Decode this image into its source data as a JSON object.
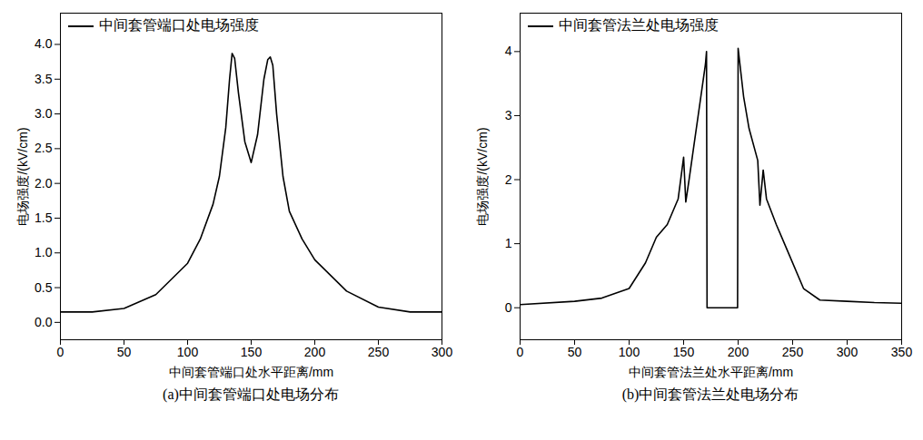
{
  "chart_data": [
    {
      "type": "line",
      "title": "(a)中间套管端口处电场分布",
      "x_label": "中间套管端口处水平距离/mm",
      "y_label": "电场强度/(kV/cm)",
      "xlim": [
        0,
        300
      ],
      "xticks": [
        0,
        50,
        100,
        150,
        200,
        250,
        300
      ],
      "ylim": [
        -0.25,
        4.45
      ],
      "yticks": [
        {
          "value": 0,
          "label": "0.0"
        },
        0.5,
        {
          "value": 1,
          "label": "1.0"
        },
        1.5,
        {
          "value": 2,
          "label": "2.0"
        },
        2.5,
        {
          "value": 3,
          "label": "3.0"
        },
        3.5,
        {
          "value": 4,
          "label": "4.0"
        }
      ],
      "grid": false,
      "legend": "top-left",
      "series": [
        {
          "name": "中间套管端口处电场强度",
          "color": "#000000",
          "x": [
            0,
            25,
            50,
            75,
            100,
            110,
            120,
            125,
            130,
            133,
            135,
            137,
            140,
            145,
            150,
            155,
            160,
            163,
            165,
            167,
            170,
            175,
            180,
            190,
            200,
            225,
            250,
            275,
            300
          ],
          "values": [
            0.15,
            0.15,
            0.2,
            0.4,
            0.85,
            1.2,
            1.7,
            2.1,
            2.8,
            3.5,
            3.87,
            3.8,
            3.3,
            2.6,
            2.3,
            2.7,
            3.5,
            3.78,
            3.82,
            3.7,
            3.0,
            2.1,
            1.6,
            1.2,
            0.9,
            0.45,
            0.22,
            0.15,
            0.15
          ]
        }
      ]
    },
    {
      "type": "line",
      "title": "(b)中间套管法兰处电场分布",
      "x_label": "中间套管法兰处水平距离/mm",
      "y_label": "电场强度/(kV/cm)",
      "xlim": [
        0,
        350
      ],
      "xticks": [
        0,
        50,
        100,
        150,
        200,
        250,
        300,
        350
      ],
      "ylim": [
        -0.5,
        4.6
      ],
      "yticks": [
        0,
        1,
        2,
        3,
        4
      ],
      "grid": false,
      "legend": "top-left",
      "series": [
        {
          "name": "中间套管法兰处电场强度",
          "color": "#000000",
          "x": [
            0,
            50,
            75,
            100,
            115,
            125,
            135,
            145,
            150,
            152,
            155,
            160,
            165,
            170,
            171,
            171.5,
            199.5,
            200,
            205,
            210,
            218,
            220,
            223,
            226,
            235,
            245,
            260,
            275,
            300,
            325,
            350
          ],
          "values": [
            0.05,
            0.1,
            0.15,
            0.3,
            0.7,
            1.1,
            1.3,
            1.7,
            2.35,
            1.65,
            2.0,
            2.6,
            3.2,
            3.8,
            4.0,
            0,
            0,
            4.05,
            3.3,
            2.8,
            2.3,
            1.6,
            2.15,
            1.7,
            1.3,
            0.9,
            0.3,
            0.12,
            0.1,
            0.08,
            0.07
          ]
        }
      ]
    }
  ]
}
